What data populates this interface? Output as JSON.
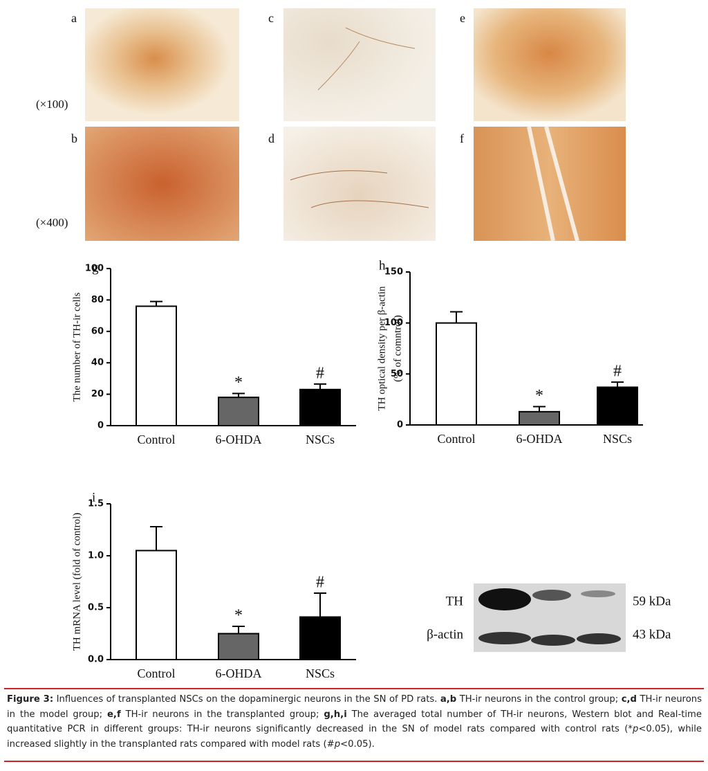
{
  "image_panels": [
    "a",
    "b",
    "c",
    "d",
    "e",
    "f"
  ],
  "magnifications": [
    "(×100)",
    "(×400)"
  ],
  "chart_data": [
    {
      "type": "bar",
      "panel": "g",
      "ylabel": [
        "The number of TH-ir cells"
      ],
      "categories": [
        "Control",
        "6-OHDA",
        "NSCs"
      ],
      "values": [
        76,
        18,
        23
      ],
      "errors": [
        3,
        2.5,
        3.5
      ],
      "colors": [
        "#ffffff",
        "#666666",
        "#000000"
      ],
      "markers": [
        null,
        "*",
        "#"
      ],
      "ylim": [
        0,
        100
      ],
      "yticks": [
        0,
        20,
        40,
        60,
        80,
        100
      ]
    },
    {
      "type": "bar",
      "panel": "h",
      "ylabel": [
        "TH optical density per β-actin",
        "(% of comntrol)"
      ],
      "categories": [
        "Control",
        "6-OHDA",
        "NSCs"
      ],
      "values": [
        100,
        13,
        37
      ],
      "errors": [
        11,
        5,
        5
      ],
      "colors": [
        "#ffffff",
        "#666666",
        "#000000"
      ],
      "markers": [
        null,
        "*",
        "#"
      ],
      "ylim": [
        0,
        150
      ],
      "yticks": [
        0,
        50,
        100,
        150
      ]
    },
    {
      "type": "bar",
      "panel": "i",
      "ylabel": [
        "TH mRNA level (fold of control)"
      ],
      "categories": [
        "Control",
        "6-OHDA",
        "NSCs"
      ],
      "values": [
        1.05,
        0.25,
        0.41
      ],
      "errors": [
        0.23,
        0.07,
        0.23
      ],
      "colors": [
        "#ffffff",
        "#666666",
        "#000000"
      ],
      "markers": [
        null,
        "*",
        "#"
      ],
      "ylim": [
        0,
        1.5
      ],
      "yticks": [
        {
          "value": 0,
          "label": "0.0"
        },
        0.5,
        {
          "value": 1,
          "label": "1.0"
        },
        1.5
      ]
    }
  ],
  "blot": {
    "rows": [
      "TH",
      "β-actin"
    ],
    "sizes": [
      "59 kDa",
      "43 kDa"
    ]
  },
  "caption": [
    "Figure 3:",
    " Influences of transplanted NSCs on the dopaminergic neurons in the SN of PD rats. ",
    "a,b",
    " TH-ir neurons in the control group; ",
    "c,d",
    " TH-ir neurons in the model group; ",
    "e,f",
    " TH-ir neurons in the transplanted group; ",
    "g,h,i",
    " The averaged total number of TH-ir neurons, Western blot and Real-time quantitative PCR in different groups: TH-ir neurons significantly decreased in the SN of model rats compared with control rats (*",
    "p",
    "<0.05), while increased slightly in the transplanted rats compared with model rats (#",
    "p",
    "<0.05)."
  ]
}
